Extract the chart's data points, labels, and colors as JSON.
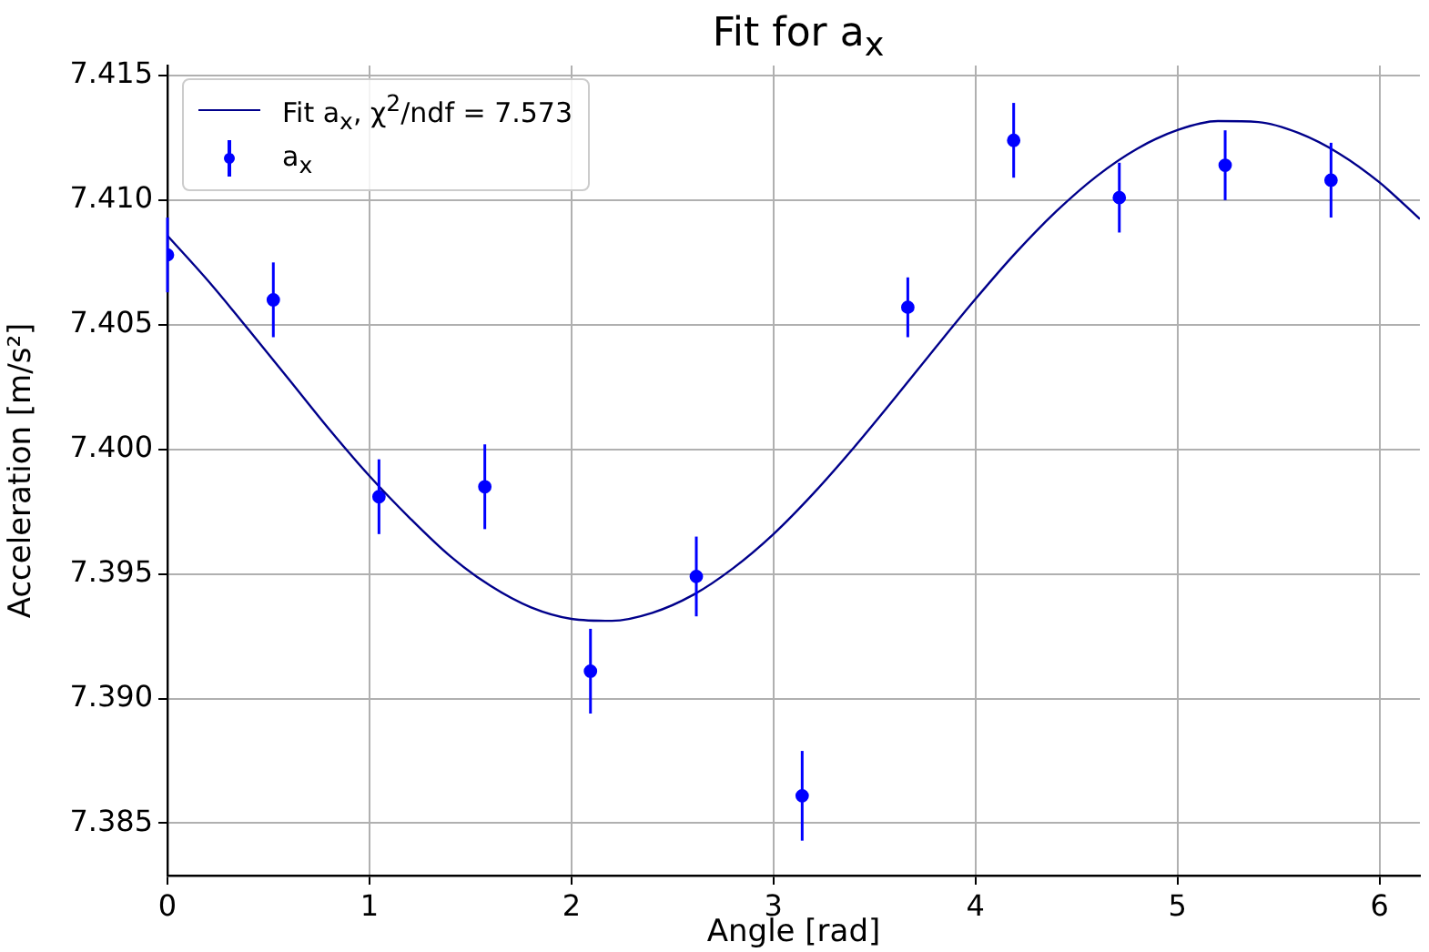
{
  "chart_data": {
    "type": "scatter",
    "title": "Fit for a$_{x}$",
    "xlabel": "Angle [rad]",
    "ylabel": "Acceleration [m/s²]",
    "xlim": [
      0,
      6.2
    ],
    "xticks": [
      0,
      1,
      2,
      3,
      4,
      5,
      6
    ],
    "ylim": [
      7.3829,
      7.4154
    ],
    "yticks": [
      {
        "value": 7.385,
        "label": "7.385"
      },
      {
        "value": 7.39,
        "label": "7.390"
      },
      {
        "value": 7.395,
        "label": "7.395"
      },
      {
        "value": 7.4,
        "label": "7.400"
      },
      {
        "value": 7.405,
        "label": "7.405"
      },
      {
        "value": 7.41,
        "label": "7.410"
      },
      {
        "value": 7.415,
        "label": "7.415"
      }
    ],
    "grid": true,
    "legend": "top left",
    "series": [
      {
        "type": "line",
        "name": "Fit a$_{x}$, χ$^{2}$/ndf = 7.573",
        "color": "#00008b",
        "marker": "none",
        "line_style": "solid",
        "x": [
          0,
          0.2,
          0.4,
          0.6,
          0.8,
          1.0,
          1.2,
          1.4,
          1.6,
          1.8,
          2.0,
          2.2,
          2.4,
          2.6,
          2.8,
          3.0,
          3.2,
          3.4,
          3.6,
          3.8,
          4.0,
          4.2,
          4.4,
          4.6,
          4.8,
          5.0,
          5.2,
          5.4,
          5.6,
          5.8,
          6.0,
          6.2
        ],
        "values": [
          7.40857,
          7.40677,
          7.40482,
          7.40282,
          7.40081,
          7.39893,
          7.39724,
          7.39571,
          7.39452,
          7.39366,
          7.3932,
          7.39312,
          7.39344,
          7.39415,
          7.39523,
          7.3966,
          7.39825,
          7.40009,
          7.40205,
          7.40406,
          7.40603,
          7.40789,
          7.40955,
          7.41096,
          7.41206,
          7.41281,
          7.41317,
          7.41313,
          7.41269,
          7.41187,
          7.41071,
          7.40924
        ]
      },
      {
        "name": "a$_{x}$",
        "color": "#0000ff",
        "marker": "circle",
        "x": [
          0,
          0.524,
          1.047,
          1.571,
          2.094,
          2.618,
          3.142,
          3.665,
          4.189,
          4.712,
          5.236,
          5.76
        ],
        "values": [
          7.4078,
          7.406,
          7.3981,
          7.3985,
          7.3911,
          7.3949,
          7.3861,
          7.4057,
          7.4124,
          7.4101,
          7.4114,
          7.4108
        ],
        "errors": [
          0.0015,
          0.0015,
          0.0015,
          0.0017,
          0.0017,
          0.0016,
          0.0018,
          0.0012,
          0.0015,
          0.0014,
          0.0014,
          0.0015
        ]
      }
    ]
  }
}
